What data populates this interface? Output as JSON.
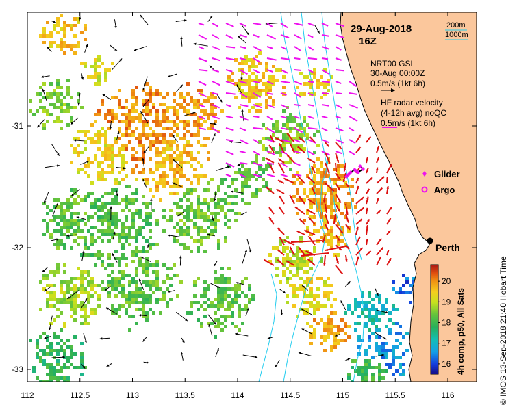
{
  "title": {
    "date": "29-Aug-2018",
    "hour": "16Z"
  },
  "scale": {
    "short": "200m",
    "long": "1000m"
  },
  "model": {
    "name": "NRT00 GSL",
    "date": "30-Aug 00:00Z",
    "ref": "0.5m/s (1kt 6h)"
  },
  "radar": {
    "name": "HF radar velocity",
    "detail": "(4-12h avg) noQC",
    "ref": "0.5m/s (1kt 6h)"
  },
  "legend": {
    "glider": "Glider",
    "argo": "Argo"
  },
  "places": {
    "perth": "Perth"
  },
  "colorbar": {
    "title": "4h comp, p50, All Sats",
    "ticks": [
      "16",
      "17",
      "18",
      "19",
      "20"
    ],
    "min": 15.5,
    "max": 20.8
  },
  "axes": {
    "x_ticks": [
      "112",
      "112.5",
      "113",
      "113.5",
      "114",
      "114.5",
      "115",
      "115.5",
      "116"
    ],
    "y_ticks": [
      "-31",
      "-32",
      "-33"
    ],
    "xlim": [
      112,
      116.3
    ],
    "ylim": [
      -33.1,
      -30.1
    ]
  },
  "credit": "© IMOS 13-Sep-2018 21:40 Hobart Time",
  "colors": {
    "land": "#fbc79c",
    "radar": "#ee11ee",
    "model": "#dd1111",
    "isobath": "#22ccee",
    "glider": "#000000"
  }
}
